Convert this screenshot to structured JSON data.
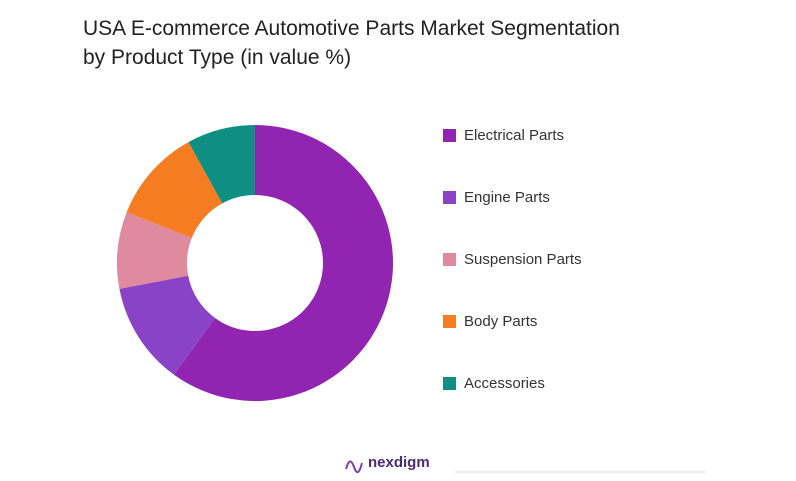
{
  "chart_data": {
    "type": "donut",
    "title": "USA E-commerce Automotive Parts Market Segmentation by Product Type (in value %)",
    "categories": [
      "Electrical Parts",
      "Engine Parts",
      "Suspension Parts",
      "Body Parts",
      "Accessories"
    ],
    "values": [
      60,
      12,
      9,
      11,
      8
    ],
    "colors": [
      "#9124b0",
      "#8a43c6",
      "#e08a9f",
      "#f47d22",
      "#0f8f84"
    ],
    "legend": "right"
  },
  "logo": "nexdigm"
}
